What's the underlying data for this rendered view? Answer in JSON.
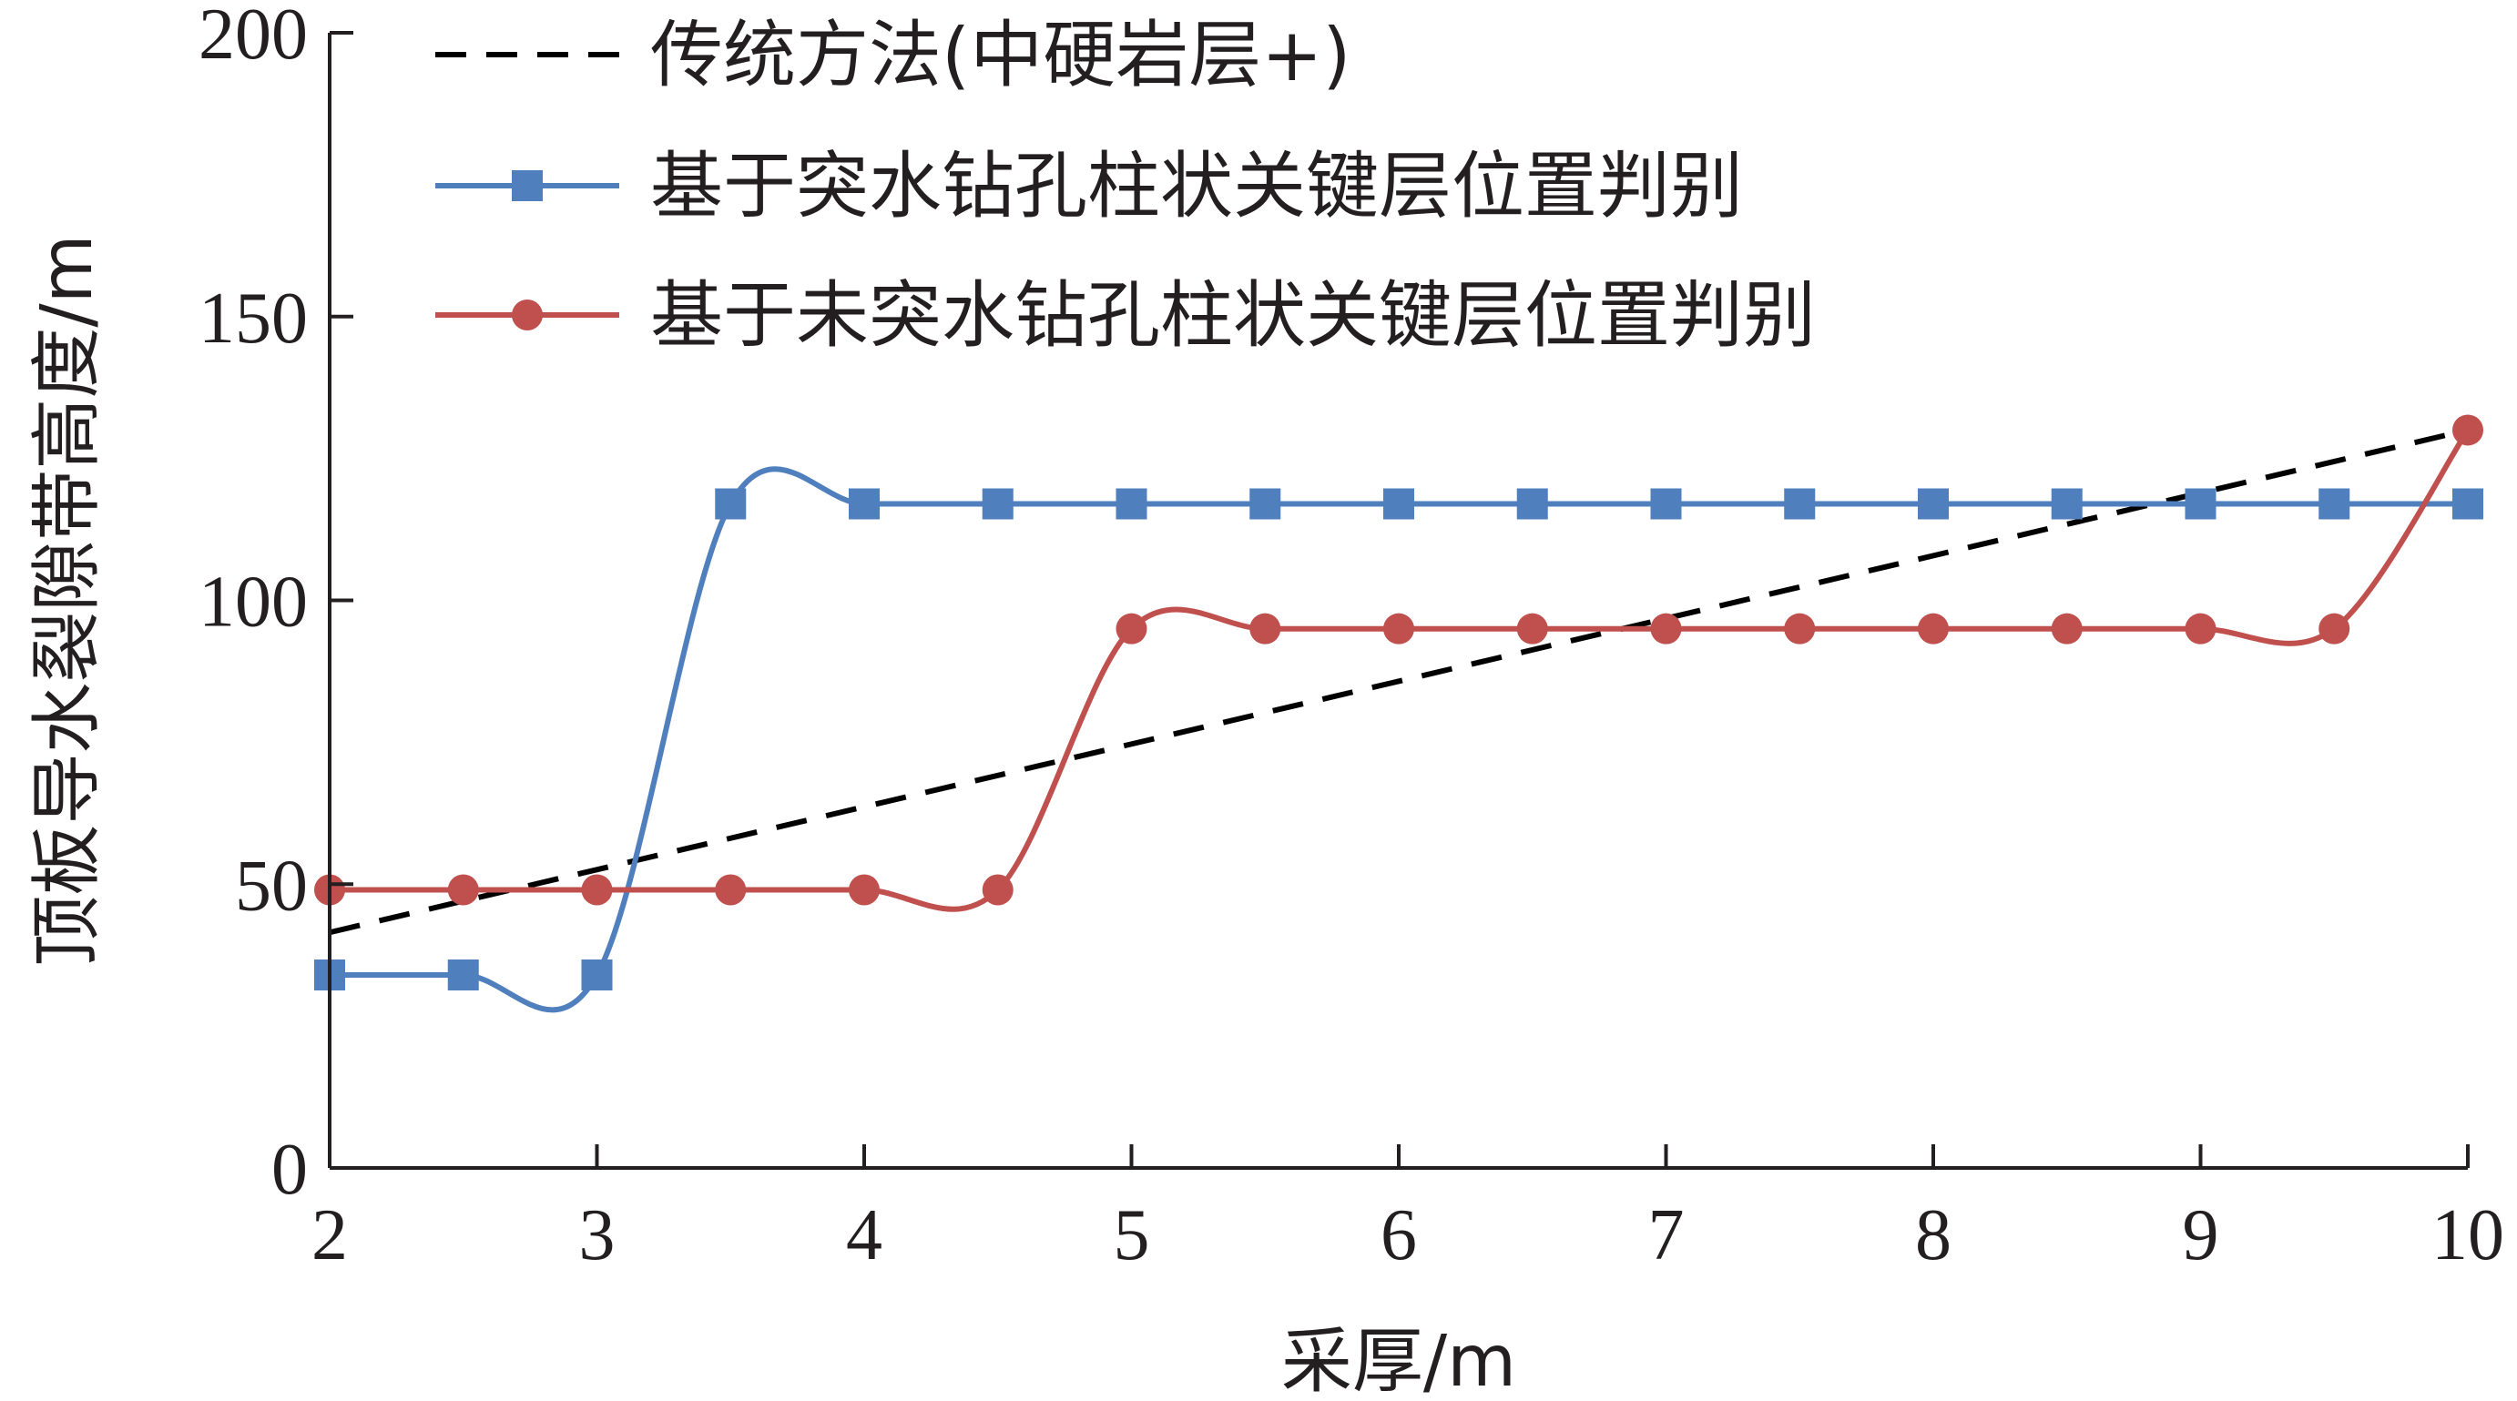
{
  "chart_data": {
    "type": "line",
    "title": "",
    "xlabel": "采厚/m",
    "ylabel": "顶板导水裂隙带高度/m",
    "xlim": [
      2,
      10
    ],
    "ylim": [
      0,
      200
    ],
    "x_ticks": [
      "2",
      "3",
      "4",
      "5",
      "6",
      "7",
      "8",
      "9",
      "10"
    ],
    "y_ticks": [
      "0",
      "50",
      "100",
      "150",
      "200"
    ],
    "grid": false,
    "legend_position": "top-left",
    "series": [
      {
        "name": "传统方法(中硬岩层+)",
        "style": "dashed",
        "color": "#000000",
        "x": [
          2,
          10
        ],
        "y": [
          41.5,
          130
        ]
      },
      {
        "name": "基于突水钻孔柱状关键层位置判别",
        "style": "solid-square",
        "color": "#4f7fbd",
        "x": [
          2,
          2.5,
          3,
          3.5,
          4,
          4.5,
          5,
          5.5,
          6,
          6.5,
          7,
          7.5,
          8,
          8.5,
          9,
          9.5,
          10
        ],
        "y": [
          34,
          34,
          34,
          117,
          117,
          117,
          117,
          117,
          117,
          117,
          117,
          117,
          117,
          117,
          117,
          117,
          117
        ]
      },
      {
        "name": "基于未突水钻孔柱状关键层位置判别",
        "style": "solid-circle",
        "color": "#c0504d",
        "x": [
          2,
          2.5,
          3,
          3.5,
          4,
          4.5,
          5,
          5.5,
          6,
          6.5,
          7,
          7.5,
          8,
          8.5,
          9,
          9.5,
          10
        ],
        "y": [
          49,
          49,
          49,
          49,
          49,
          49,
          95,
          95,
          95,
          95,
          95,
          95,
          95,
          95,
          95,
          95,
          130
        ]
      }
    ]
  }
}
